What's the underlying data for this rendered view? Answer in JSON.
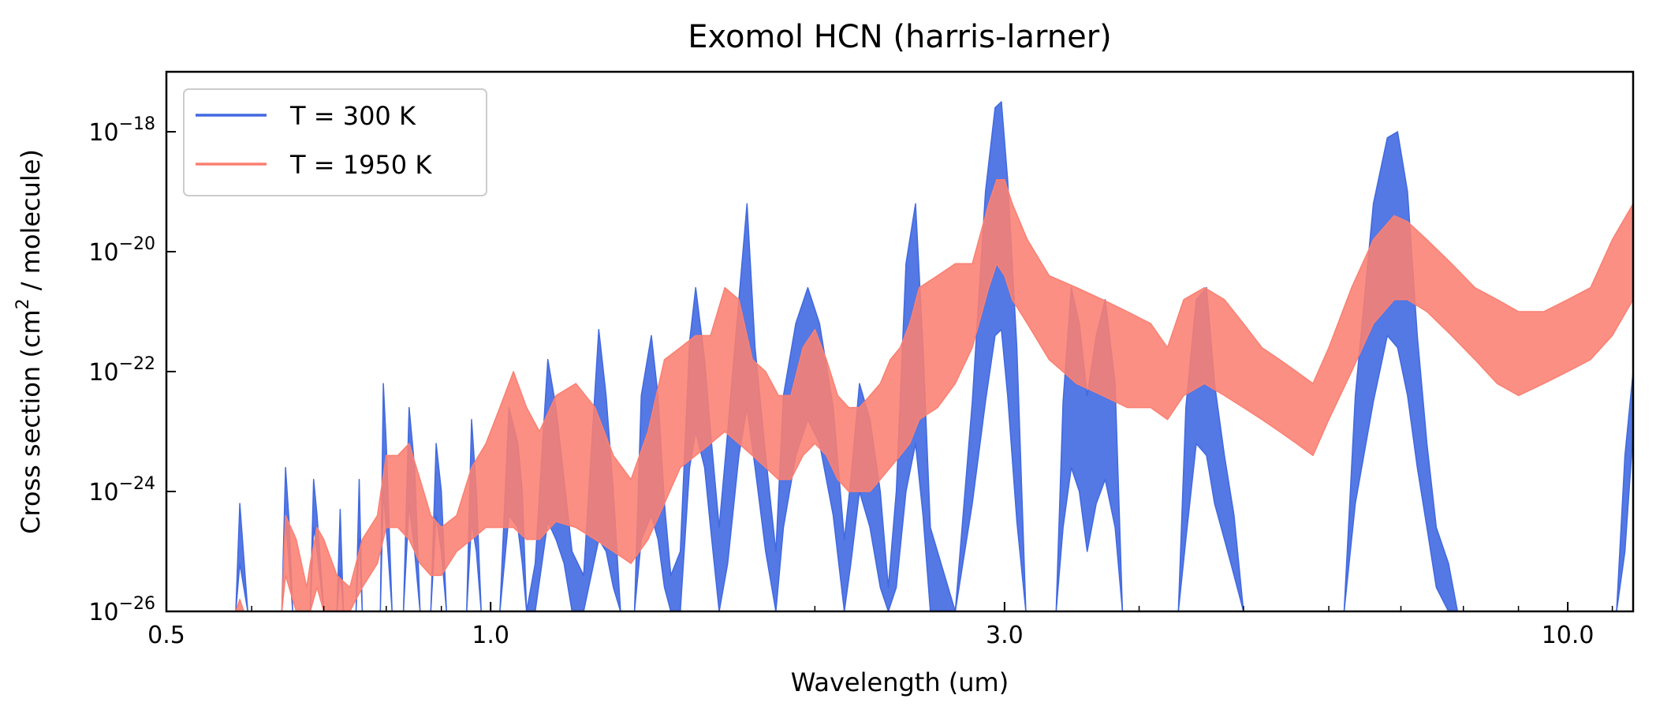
{
  "chart_data": {
    "type": "line",
    "title": "Exomol HCN (harris-larner)",
    "xlabel": "Wavelength (um)",
    "ylabel_prefix": "Cross section (cm",
    "ylabel_sup": "2",
    "ylabel_suffix": " / molecule)",
    "x_scale": "log",
    "y_scale": "log",
    "xlim": [
      0.5,
      11.5
    ],
    "ylim": [
      1e-26,
      1e-17
    ],
    "xticks": [
      {
        "value": 0.5,
        "label": "0.5"
      },
      {
        "value": 1.0,
        "label": "1.0"
      },
      {
        "value": 3.0,
        "label": "3.0"
      },
      {
        "value": 10.0,
        "label": "10.0"
      }
    ],
    "yticks": [
      {
        "value": -26,
        "base": "10",
        "exp": "−26"
      },
      {
        "value": -24,
        "base": "10",
        "exp": "−24"
      },
      {
        "value": -22,
        "base": "10",
        "exp": "−22"
      },
      {
        "value": -20,
        "base": "10",
        "exp": "−20"
      },
      {
        "value": -18,
        "base": "10",
        "exp": "−18"
      }
    ],
    "legend_position": "top-left",
    "series": [
      {
        "name": "T = 300 K",
        "color": "#4169e1",
        "band_log10": [
          [
            0.58,
            -26,
            -26
          ],
          [
            0.585,
            -25.2,
            -24.2
          ],
          [
            0.595,
            -26,
            -26
          ],
          [
            0.64,
            -26,
            -26
          ],
          [
            0.645,
            -24.5,
            -23.6
          ],
          [
            0.65,
            -25.2,
            -24.5
          ],
          [
            0.655,
            -26,
            -26
          ],
          [
            0.68,
            -26,
            -26
          ],
          [
            0.685,
            -24.6,
            -23.8
          ],
          [
            0.69,
            -25,
            -24.4
          ],
          [
            0.7,
            -26,
            -26
          ],
          [
            0.72,
            -26,
            -26
          ],
          [
            0.725,
            -25.3,
            -24.3
          ],
          [
            0.73,
            -26,
            -26
          ],
          [
            0.75,
            -26,
            -26
          ],
          [
            0.755,
            -24.8,
            -23.8
          ],
          [
            0.76,
            -26,
            -26
          ],
          [
            0.79,
            -26,
            -26
          ],
          [
            0.795,
            -24,
            -22.2
          ],
          [
            0.8,
            -24.6,
            -23.2
          ],
          [
            0.81,
            -26,
            -26
          ],
          [
            0.83,
            -26,
            -26
          ],
          [
            0.84,
            -24.2,
            -22.6
          ],
          [
            0.85,
            -25,
            -23.6
          ],
          [
            0.86,
            -26,
            -26
          ],
          [
            0.88,
            -26,
            -26
          ],
          [
            0.89,
            -24.4,
            -23.2
          ],
          [
            0.9,
            -25,
            -24
          ],
          [
            0.91,
            -26,
            -26
          ],
          [
            0.95,
            -26,
            -26
          ],
          [
            0.96,
            -24.5,
            -22.8
          ],
          [
            0.97,
            -25,
            -24
          ],
          [
            0.98,
            -26,
            -26
          ],
          [
            1.02,
            -26,
            -26
          ],
          [
            1.04,
            -24.4,
            -22.6
          ],
          [
            1.06,
            -24.6,
            -23.2
          ],
          [
            1.07,
            -25.2,
            -24
          ],
          [
            1.08,
            -26,
            -26
          ],
          [
            1.1,
            -26,
            -25.2
          ],
          [
            1.13,
            -24.5,
            -21.8
          ],
          [
            1.15,
            -24.8,
            -22.6
          ],
          [
            1.17,
            -25.2,
            -23.8
          ],
          [
            1.19,
            -26,
            -25
          ],
          [
            1.22,
            -26,
            -25.4
          ],
          [
            1.26,
            -24.8,
            -21.3
          ],
          [
            1.28,
            -25,
            -22.4
          ],
          [
            1.3,
            -25.6,
            -24
          ],
          [
            1.32,
            -26,
            -26
          ],
          [
            1.36,
            -26,
            -26
          ],
          [
            1.38,
            -24.8,
            -22.4
          ],
          [
            1.41,
            -24.4,
            -21.4
          ],
          [
            1.43,
            -24.8,
            -22.4
          ],
          [
            1.45,
            -25.6,
            -24.2
          ],
          [
            1.47,
            -26,
            -25.4
          ],
          [
            1.5,
            -26,
            -25
          ],
          [
            1.53,
            -23.6,
            -21.5
          ],
          [
            1.55,
            -23,
            -20.6
          ],
          [
            1.58,
            -23.6,
            -21.8
          ],
          [
            1.6,
            -24.6,
            -23
          ],
          [
            1.63,
            -26,
            -24.6
          ],
          [
            1.66,
            -25.2,
            -23
          ],
          [
            1.7,
            -23.4,
            -20.8
          ],
          [
            1.73,
            -22.6,
            -19.2
          ],
          [
            1.76,
            -23.6,
            -21.6
          ],
          [
            1.8,
            -25,
            -23.4
          ],
          [
            1.84,
            -26,
            -25
          ],
          [
            1.87,
            -24.6,
            -22.4
          ],
          [
            1.92,
            -23.4,
            -21.2
          ],
          [
            1.97,
            -22.8,
            -20.6
          ],
          [
            2.02,
            -23.2,
            -21.2
          ],
          [
            2.08,
            -24.4,
            -22.6
          ],
          [
            2.13,
            -26,
            -24.8
          ],
          [
            2.16,
            -25.2,
            -23.8
          ],
          [
            2.2,
            -24,
            -22.2
          ],
          [
            2.25,
            -24.6,
            -22.8
          ],
          [
            2.3,
            -25.6,
            -24
          ],
          [
            2.34,
            -26,
            -25.6
          ],
          [
            2.38,
            -25.6,
            -24
          ],
          [
            2.43,
            -24,
            -20.2
          ],
          [
            2.48,
            -23.2,
            -19.2
          ],
          [
            2.52,
            -24.4,
            -21.6
          ],
          [
            2.56,
            -26,
            -24.6
          ],
          [
            2.7,
            -26,
            -26
          ],
          [
            2.8,
            -24.2,
            -22.5
          ],
          [
            2.88,
            -22.5,
            -19
          ],
          [
            2.94,
            -21.4,
            -17.6
          ],
          [
            2.98,
            -21.3,
            -17.5
          ],
          [
            3.02,
            -22.4,
            -18.8
          ],
          [
            3.08,
            -24.5,
            -21.6
          ],
          [
            3.14,
            -26,
            -26
          ],
          [
            3.35,
            -26,
            -26
          ],
          [
            3.4,
            -24.6,
            -22.5
          ],
          [
            3.46,
            -23.6,
            -20.6
          ],
          [
            3.52,
            -24,
            -21.2
          ],
          [
            3.58,
            -25,
            -22.4
          ],
          [
            3.65,
            -24.2,
            -21.4
          ],
          [
            3.72,
            -23.8,
            -20.8
          ],
          [
            3.8,
            -24.6,
            -22.2
          ],
          [
            3.86,
            -26,
            -26
          ],
          [
            4.35,
            -26,
            -26
          ],
          [
            4.42,
            -24.8,
            -22.6
          ],
          [
            4.52,
            -23.2,
            -20.8
          ],
          [
            4.62,
            -23.4,
            -20.6
          ],
          [
            4.7,
            -24.2,
            -22.2
          ],
          [
            4.8,
            -24.8,
            -23.4
          ],
          [
            4.9,
            -25.4,
            -24.4
          ],
          [
            5.0,
            -26,
            -26
          ],
          [
            6.2,
            -26,
            -26
          ],
          [
            6.35,
            -24.2,
            -22.4
          ],
          [
            6.6,
            -22.5,
            -19.2
          ],
          [
            6.8,
            -21.4,
            -18.1
          ],
          [
            6.95,
            -21.6,
            -18
          ],
          [
            7.1,
            -22.4,
            -19
          ],
          [
            7.25,
            -23.6,
            -21.4
          ],
          [
            7.4,
            -24.6,
            -23.2
          ],
          [
            7.55,
            -25.6,
            -24.6
          ],
          [
            7.75,
            -26,
            -25.2
          ],
          [
            7.9,
            -26,
            -26
          ],
          [
            11.1,
            -26,
            -26
          ],
          [
            11.3,
            -25,
            -23.4
          ],
          [
            11.5,
            -23,
            -22
          ]
        ]
      },
      {
        "name": "T = 1950 K",
        "color": "#fa8072",
        "band_log10": [
          [
            0.58,
            -26,
            -26
          ],
          [
            0.585,
            -26,
            -25.8
          ],
          [
            0.59,
            -26,
            -26
          ],
          [
            0.64,
            -26,
            -26
          ],
          [
            0.645,
            -25.4,
            -24.4
          ],
          [
            0.66,
            -26,
            -24.8
          ],
          [
            0.675,
            -26,
            -25.6
          ],
          [
            0.68,
            -26,
            -25.2
          ],
          [
            0.69,
            -25.6,
            -24.6
          ],
          [
            0.7,
            -26,
            -24.8
          ],
          [
            0.72,
            -26,
            -25.4
          ],
          [
            0.74,
            -26,
            -25.6
          ],
          [
            0.76,
            -25.6,
            -24.8
          ],
          [
            0.785,
            -25.2,
            -24.4
          ],
          [
            0.8,
            -24.6,
            -23.4
          ],
          [
            0.82,
            -24.6,
            -23.4
          ],
          [
            0.84,
            -24.8,
            -23.2
          ],
          [
            0.86,
            -25.2,
            -23.8
          ],
          [
            0.88,
            -25.4,
            -24.4
          ],
          [
            0.9,
            -25.4,
            -24.6
          ],
          [
            0.93,
            -25,
            -24.4
          ],
          [
            0.96,
            -24.8,
            -23.6
          ],
          [
            0.99,
            -24.6,
            -23.2
          ],
          [
            1.02,
            -24.6,
            -22.6
          ],
          [
            1.05,
            -24.6,
            -22
          ],
          [
            1.08,
            -24.8,
            -22.6
          ],
          [
            1.11,
            -24.8,
            -23
          ],
          [
            1.15,
            -24.5,
            -22.4
          ],
          [
            1.2,
            -24.6,
            -22.2
          ],
          [
            1.25,
            -24.8,
            -22.6
          ],
          [
            1.3,
            -25,
            -23.4
          ],
          [
            1.35,
            -25.2,
            -23.8
          ],
          [
            1.4,
            -24.8,
            -23
          ],
          [
            1.45,
            -24.2,
            -21.8
          ],
          [
            1.5,
            -23.6,
            -21.6
          ],
          [
            1.55,
            -23.4,
            -21.4
          ],
          [
            1.6,
            -23.2,
            -21.4
          ],
          [
            1.65,
            -23,
            -20.6
          ],
          [
            1.7,
            -23.2,
            -20.8
          ],
          [
            1.75,
            -23.4,
            -21.8
          ],
          [
            1.8,
            -23.6,
            -22
          ],
          [
            1.85,
            -23.8,
            -22.4
          ],
          [
            1.9,
            -23.8,
            -22.4
          ],
          [
            1.95,
            -23.4,
            -21.6
          ],
          [
            2.0,
            -23.2,
            -21.3
          ],
          [
            2.05,
            -23.4,
            -21.8
          ],
          [
            2.1,
            -23.8,
            -22.4
          ],
          [
            2.15,
            -24,
            -22.6
          ],
          [
            2.2,
            -24,
            -22.6
          ],
          [
            2.25,
            -24,
            -22.4
          ],
          [
            2.3,
            -23.8,
            -22.2
          ],
          [
            2.35,
            -23.6,
            -21.8
          ],
          [
            2.4,
            -23.4,
            -21.6
          ],
          [
            2.45,
            -23.2,
            -21.2
          ],
          [
            2.5,
            -22.8,
            -20.6
          ],
          [
            2.6,
            -22.6,
            -20.4
          ],
          [
            2.7,
            -22.2,
            -20.2
          ],
          [
            2.8,
            -21.6,
            -20.2
          ],
          [
            2.9,
            -20.6,
            -19.2
          ],
          [
            2.95,
            -20.2,
            -18.8
          ],
          [
            3.0,
            -20.4,
            -18.8
          ],
          [
            3.05,
            -20.8,
            -19.2
          ],
          [
            3.15,
            -21.2,
            -19.8
          ],
          [
            3.3,
            -21.8,
            -20.4
          ],
          [
            3.5,
            -22.2,
            -20.6
          ],
          [
            3.7,
            -22.4,
            -20.8
          ],
          [
            3.9,
            -22.6,
            -21
          ],
          [
            4.1,
            -22.6,
            -21.2
          ],
          [
            4.25,
            -22.8,
            -21.6
          ],
          [
            4.4,
            -22.4,
            -20.8
          ],
          [
            4.6,
            -22.2,
            -20.6
          ],
          [
            4.8,
            -22.4,
            -20.8
          ],
          [
            5.0,
            -22.6,
            -21.2
          ],
          [
            5.2,
            -22.8,
            -21.6
          ],
          [
            5.4,
            -23,
            -21.8
          ],
          [
            5.6,
            -23.2,
            -22
          ],
          [
            5.8,
            -23.4,
            -22.2
          ],
          [
            6.0,
            -22.8,
            -21.6
          ],
          [
            6.3,
            -22,
            -20.6
          ],
          [
            6.6,
            -21.2,
            -19.8
          ],
          [
            6.9,
            -20.8,
            -19.4
          ],
          [
            7.1,
            -20.8,
            -19.5
          ],
          [
            7.4,
            -21,
            -19.8
          ],
          [
            7.8,
            -21.4,
            -20.2
          ],
          [
            8.2,
            -21.8,
            -20.6
          ],
          [
            8.6,
            -22.2,
            -20.8
          ],
          [
            9.0,
            -22.4,
            -21
          ],
          [
            9.5,
            -22.2,
            -21
          ],
          [
            10.0,
            -22,
            -20.8
          ],
          [
            10.5,
            -21.8,
            -20.6
          ],
          [
            11.0,
            -21.4,
            -19.8
          ],
          [
            11.5,
            -20.8,
            -19.2
          ]
        ]
      }
    ]
  }
}
